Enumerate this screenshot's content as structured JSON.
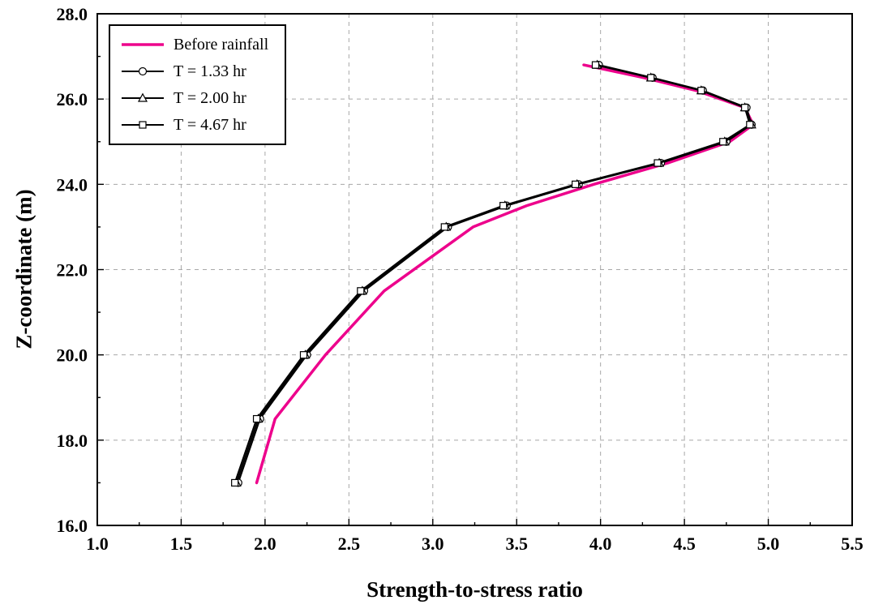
{
  "figure": {
    "background": "#ffffff",
    "frame_color": "#000000"
  },
  "axes": {
    "x_title": "Strength-to-stress ratio",
    "y_title": "Z-coordinate (m)"
  },
  "legend": {
    "position": "top-left",
    "items": [
      {
        "label": "Before rainfall"
      },
      {
        "label": "T = 1.33 hr"
      },
      {
        "label": "T = 2.00 hr"
      },
      {
        "label": "T = 4.67 hr"
      }
    ]
  },
  "chart_data": {
    "type": "line",
    "title": "",
    "xlabel": "Strength-to-stress ratio",
    "ylabel": "Z-coordinate (m)",
    "xlim": [
      1.0,
      5.5
    ],
    "ylim": [
      16.0,
      28.0
    ],
    "x_ticks": [
      1.0,
      1.5,
      2.0,
      2.5,
      3.0,
      3.5,
      4.0,
      4.5,
      5.0,
      5.5
    ],
    "x_tick_labels": [
      "1.0",
      "1.5",
      "2.0",
      "2.5",
      "3.0",
      "3.5",
      "4.0",
      "4.5",
      "5.0",
      "5.5"
    ],
    "y_ticks": [
      16.0,
      18.0,
      20.0,
      22.0,
      24.0,
      26.0,
      28.0
    ],
    "y_tick_labels": [
      "16.0",
      "18.0",
      "20.0",
      "22.0",
      "24.0",
      "26.0",
      "28.0"
    ],
    "x_minor_step": 0.25,
    "y_minor_step": 1.0,
    "grid": "dashed",
    "grid_color": "#a8a8a8",
    "legend_position": "top-left",
    "z_values": [
      17.0,
      18.5,
      20.0,
      21.5,
      23.0,
      23.5,
      24.0,
      24.5,
      25.0,
      25.4,
      25.8,
      26.2,
      26.5,
      26.8
    ],
    "series": [
      {
        "name": "Before rainfall",
        "color": "#ED028C",
        "line_width": 3.5,
        "marker": "none",
        "x": [
          1.95,
          2.06,
          2.36,
          2.71,
          3.24,
          3.56,
          3.96,
          4.4,
          4.77,
          4.91,
          4.86,
          4.57,
          4.26,
          3.9
        ]
      },
      {
        "name": "T = 1.33 hr",
        "color": "#000000",
        "line_width": 2,
        "marker": "circle",
        "x": [
          1.84,
          1.97,
          2.25,
          2.59,
          3.09,
          3.44,
          3.87,
          4.36,
          4.75,
          4.9,
          4.87,
          4.61,
          4.31,
          3.99
        ]
      },
      {
        "name": "T = 2.00 hr",
        "color": "#000000",
        "line_width": 2,
        "marker": "triangle",
        "x": [
          1.83,
          1.96,
          2.24,
          2.58,
          3.08,
          3.43,
          3.86,
          4.35,
          4.74,
          4.9,
          4.86,
          4.6,
          4.3,
          3.98
        ]
      },
      {
        "name": "T = 4.67 hr",
        "color": "#000000",
        "line_width": 2,
        "marker": "square",
        "x": [
          1.82,
          1.95,
          2.23,
          2.57,
          3.07,
          3.42,
          3.85,
          4.34,
          4.73,
          4.89,
          4.86,
          4.6,
          4.3,
          3.97
        ]
      }
    ]
  }
}
